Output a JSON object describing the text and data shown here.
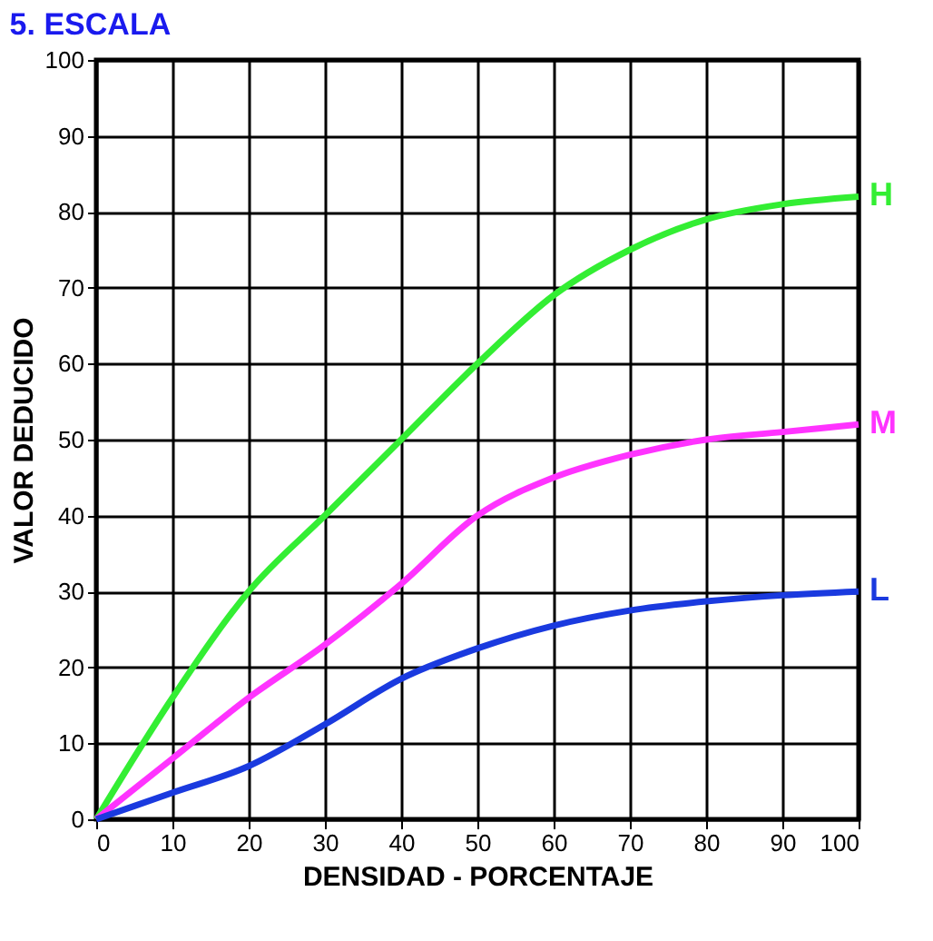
{
  "chart_data": {
    "type": "line",
    "title": "5. ESCALA",
    "xlabel": "DENSIDAD - PORCENTAJE",
    "ylabel": "VALOR DEDUCIDO",
    "x": [
      0,
      10,
      20,
      30,
      40,
      50,
      60,
      70,
      80,
      90,
      100
    ],
    "series": [
      {
        "name": "H",
        "color": "#33ee33",
        "values": [
          0,
          16,
          30,
          40,
          50,
          60,
          69,
          75,
          79,
          81,
          82
        ]
      },
      {
        "name": "M",
        "color": "#ff33ff",
        "values": [
          0,
          8,
          16,
          23,
          31,
          40,
          45,
          48,
          50,
          51,
          52
        ]
      },
      {
        "name": "L",
        "color": "#1a3adf",
        "values": [
          0,
          3.5,
          7,
          12.5,
          18.5,
          22.5,
          25.5,
          27.5,
          28.7,
          29.5,
          30
        ]
      }
    ],
    "xlim": [
      0,
      100
    ],
    "xticks": [
      0,
      10,
      20,
      30,
      40,
      50,
      60,
      70,
      80,
      90,
      100
    ],
    "ylim": [
      0,
      100
    ],
    "yticks": [
      0,
      10,
      20,
      30,
      40,
      50,
      60,
      70,
      80,
      90,
      100
    ],
    "grid": true,
    "marker": "none",
    "line_style": "solid"
  }
}
